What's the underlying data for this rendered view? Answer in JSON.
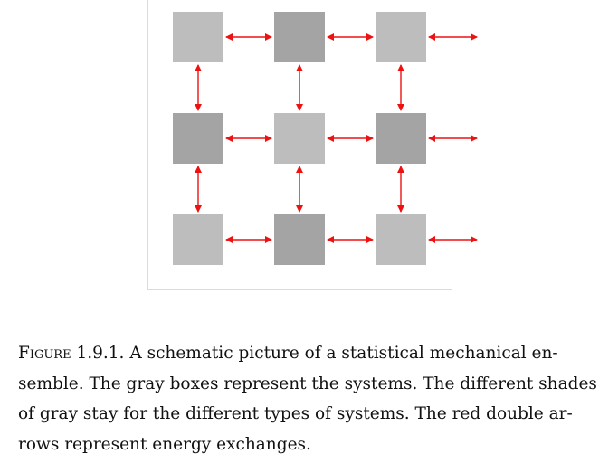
{
  "figure": {
    "colors": {
      "frame": "#f7e94a",
      "arrow": "#ee1111",
      "light_box": "#bdbdbd",
      "dark_box": "#a4a4a4"
    },
    "grid": {
      "rows": 3,
      "cols": 3,
      "shades": [
        [
          "light",
          "dark",
          "light"
        ],
        [
          "dark",
          "light",
          "dark"
        ],
        [
          "light",
          "dark",
          "light"
        ]
      ]
    }
  },
  "caption": {
    "label": "Figure 1.9.1.",
    "lines": [
      "A schematic picture of a statistical mechanical en-",
      "semble. The gray boxes represent the systems. The different shades",
      "of gray stay for the different types of systems. The red double ar-",
      "rows represent energy exchanges."
    ]
  }
}
